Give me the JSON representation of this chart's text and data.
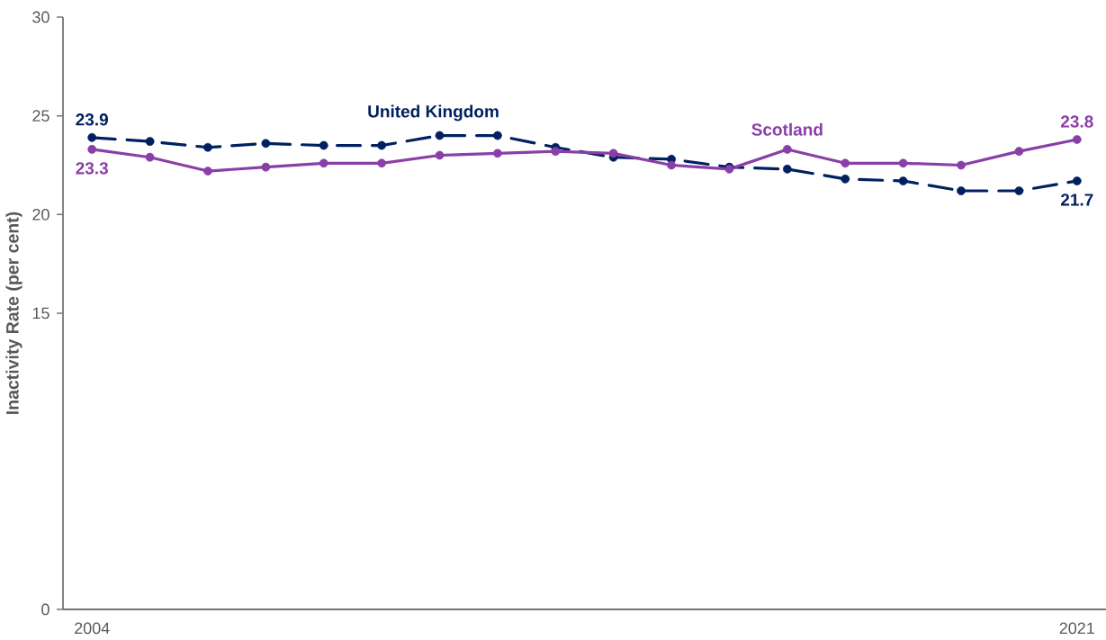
{
  "chart_data": {
    "type": "line",
    "ylabel": "Inactivity Rate (per cent)",
    "categories": [
      "2004",
      null,
      null,
      null,
      null,
      null,
      null,
      null,
      null,
      null,
      null,
      null,
      null,
      null,
      null,
      null,
      null,
      "2021"
    ],
    "ylim": [
      0,
      30
    ],
    "yticks": [
      0,
      15,
      20,
      25,
      30
    ],
    "marker": "circle",
    "series": [
      {
        "name": "United Kingdom",
        "color": "#002060",
        "line_style": "dashed",
        "values": [
          23.9,
          23.7,
          23.4,
          23.6,
          23.5,
          23.5,
          24.0,
          24.0,
          23.4,
          22.9,
          22.8,
          22.4,
          22.3,
          21.8,
          21.7,
          21.2,
          21.2,
          21.7
        ],
        "value_labels": [
          "23.9",
          null,
          null,
          null,
          null,
          null,
          null,
          null,
          null,
          null,
          null,
          null,
          null,
          null,
          null,
          null,
          null,
          "21.7"
        ]
      },
      {
        "name": "Scotland",
        "color": "#8A3FA8",
        "line_style": "solid",
        "values": [
          23.3,
          22.9,
          22.2,
          22.4,
          22.6,
          22.6,
          23.0,
          23.1,
          23.2,
          23.1,
          22.5,
          22.3,
          23.3,
          22.6,
          22.6,
          22.5,
          23.2,
          23.8
        ],
        "value_labels": [
          "23.3",
          null,
          null,
          null,
          null,
          null,
          null,
          null,
          null,
          null,
          null,
          null,
          null,
          null,
          null,
          null,
          null,
          "23.8"
        ]
      }
    ]
  }
}
